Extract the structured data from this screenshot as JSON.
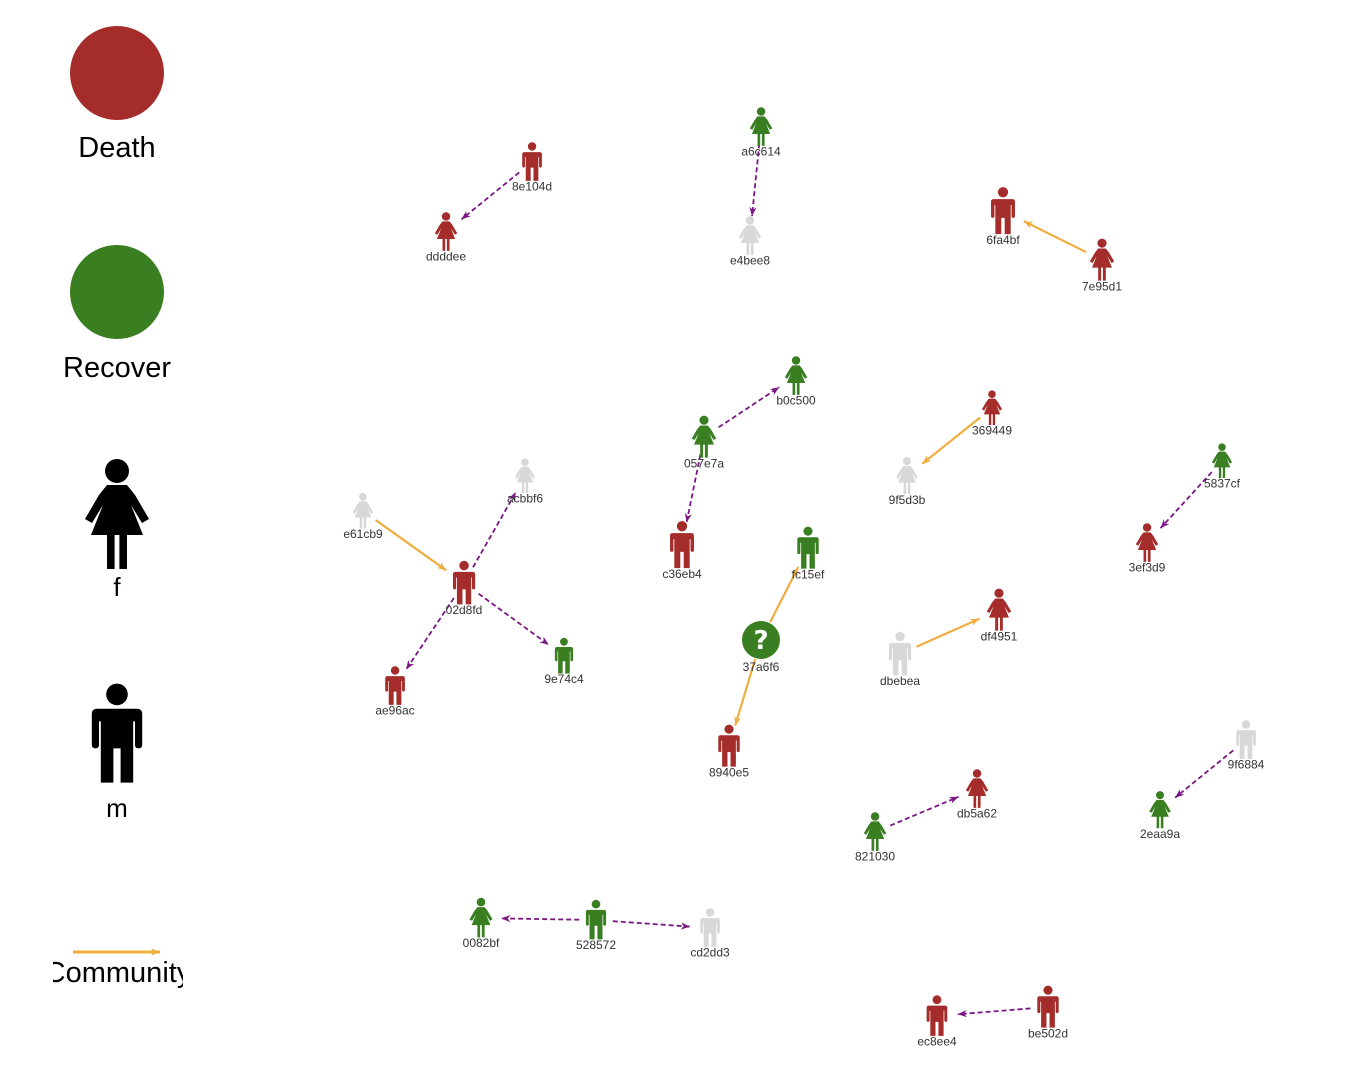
{
  "colors": {
    "death": "#a42c2a",
    "recover": "#3a7e22",
    "unknown": "#d8d8d8",
    "community": "#f0ad3e",
    "contact": "#7b1782",
    "legend_symbol": "#000000"
  },
  "legend": {
    "death_label": "Death",
    "recover_label": "Recover",
    "female_label": "f",
    "male_label": "m",
    "community_label": "Community"
  },
  "nodes": [
    {
      "id": "8e104d",
      "sex": "m",
      "status": "death"
    },
    {
      "id": "ddddee",
      "sex": "f",
      "status": "death"
    },
    {
      "id": "a6c614",
      "sex": "f",
      "status": "recover"
    },
    {
      "id": "e4bee8",
      "sex": "f",
      "status": "unknown"
    },
    {
      "id": "6fa4bf",
      "sex": "m",
      "status": "death"
    },
    {
      "id": "7e95d1",
      "sex": "f",
      "status": "death"
    },
    {
      "id": "b0c500",
      "sex": "f",
      "status": "recover"
    },
    {
      "id": "057e7a",
      "sex": "f",
      "status": "recover"
    },
    {
      "id": "c36eb4",
      "sex": "m",
      "status": "death"
    },
    {
      "id": "369449",
      "sex": "f",
      "status": "death"
    },
    {
      "id": "9f5d3b",
      "sex": "f",
      "status": "unknown"
    },
    {
      "id": "5837cf",
      "sex": "f",
      "status": "recover"
    },
    {
      "id": "3ef3d9",
      "sex": "f",
      "status": "death"
    },
    {
      "id": "e61cb9",
      "sex": "f",
      "status": "unknown"
    },
    {
      "id": "acbbf6",
      "sex": "f",
      "status": "unknown"
    },
    {
      "id": "02d8fd",
      "sex": "m",
      "status": "death"
    },
    {
      "id": "ae96ac",
      "sex": "m",
      "status": "death"
    },
    {
      "id": "9e74c4",
      "sex": "m",
      "status": "recover"
    },
    {
      "id": "fc15ef",
      "sex": "m",
      "status": "recover"
    },
    {
      "id": "37a6f6",
      "sex": "unknown",
      "status": "recover"
    },
    {
      "id": "8940e5",
      "sex": "m",
      "status": "death"
    },
    {
      "id": "dbebea",
      "sex": "m",
      "status": "unknown"
    },
    {
      "id": "df4951",
      "sex": "f",
      "status": "death"
    },
    {
      "id": "9f6884",
      "sex": "m",
      "status": "unknown"
    },
    {
      "id": "2eaa9a",
      "sex": "f",
      "status": "recover"
    },
    {
      "id": "821030",
      "sex": "f",
      "status": "recover"
    },
    {
      "id": "db5a62",
      "sex": "f",
      "status": "death"
    },
    {
      "id": "0082bf",
      "sex": "f",
      "status": "recover"
    },
    {
      "id": "528572",
      "sex": "m",
      "status": "recover"
    },
    {
      "id": "cd2dd3",
      "sex": "m",
      "status": "unknown"
    },
    {
      "id": "ec8ee4",
      "sex": "m",
      "status": "death"
    },
    {
      "id": "be502d",
      "sex": "m",
      "status": "death"
    }
  ],
  "edges": [
    {
      "from": "8e104d",
      "to": "ddddee",
      "type": "contact"
    },
    {
      "from": "a6c614",
      "to": "e4bee8",
      "type": "contact"
    },
    {
      "from": "7e95d1",
      "to": "6fa4bf",
      "type": "community"
    },
    {
      "from": "057e7a",
      "to": "b0c500",
      "type": "contact"
    },
    {
      "from": "057e7a",
      "to": "c36eb4",
      "type": "contact"
    },
    {
      "from": "369449",
      "to": "9f5d3b",
      "type": "community"
    },
    {
      "from": "5837cf",
      "to": "3ef3d9",
      "type": "contact"
    },
    {
      "from": "e61cb9",
      "to": "02d8fd",
      "type": "community"
    },
    {
      "from": "02d8fd",
      "to": "acbbf6",
      "type": "contact"
    },
    {
      "from": "02d8fd",
      "to": "ae96ac",
      "type": "contact"
    },
    {
      "from": "02d8fd",
      "to": "9e74c4",
      "type": "contact"
    },
    {
      "from": "37a6f6",
      "to": "fc15ef",
      "type": "community"
    },
    {
      "from": "37a6f6",
      "to": "8940e5",
      "type": "community"
    },
    {
      "from": "dbebea",
      "to": "df4951",
      "type": "community"
    },
    {
      "from": "9f6884",
      "to": "2eaa9a",
      "type": "contact"
    },
    {
      "from": "821030",
      "to": "db5a62",
      "type": "contact"
    },
    {
      "from": "528572",
      "to": "0082bf",
      "type": "contact"
    },
    {
      "from": "528572",
      "to": "cd2dd3",
      "type": "contact"
    },
    {
      "from": "be502d",
      "to": "ec8ee4",
      "type": "contact"
    }
  ]
}
